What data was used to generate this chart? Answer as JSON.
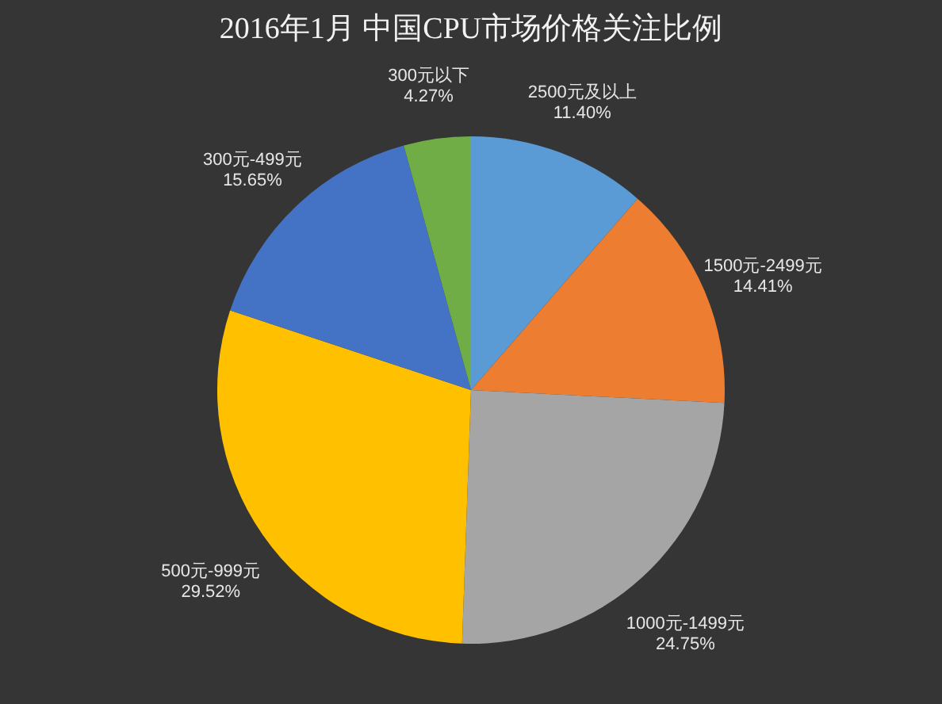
{
  "chart_data": {
    "type": "pie",
    "title": "2016年1月 中国CPU市场价格关注比例",
    "categories": [
      "2500元及以上",
      "1500元-2499元",
      "1000元-1499元",
      "500元-999元",
      "300元-499元",
      "300元以下"
    ],
    "values": [
      11.4,
      14.41,
      24.75,
      29.52,
      15.65,
      4.27
    ],
    "value_labels": [
      "11.40%",
      "14.41%",
      "24.75%",
      "29.52%",
      "15.65%",
      "4.27%"
    ],
    "colors": [
      "#5b9bd5",
      "#ed7d31",
      "#a5a5a5",
      "#ffc000",
      "#4472c4",
      "#70ad47"
    ],
    "legend": false
  }
}
